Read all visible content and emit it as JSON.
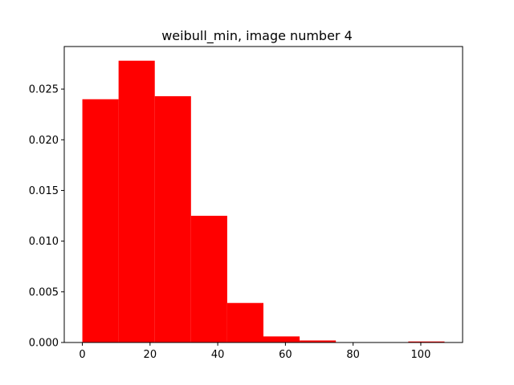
{
  "chart_data": {
    "type": "bar",
    "title": "weibull_min, image number 4",
    "xlabel": "",
    "ylabel": "",
    "bar_color": "#ff0000",
    "xlim": [
      -5.35,
      112.35
    ],
    "ylim": [
      0,
      0.0292
    ],
    "bins": [
      {
        "x0": 0.0,
        "x1": 10.7,
        "value": 0.024
      },
      {
        "x0": 10.7,
        "x1": 21.4,
        "value": 0.0278
      },
      {
        "x0": 21.4,
        "x1": 32.1,
        "value": 0.0243
      },
      {
        "x0": 32.1,
        "x1": 42.8,
        "value": 0.0125
      },
      {
        "x0": 42.8,
        "x1": 53.5,
        "value": 0.0039
      },
      {
        "x0": 53.5,
        "x1": 64.2,
        "value": 0.0006
      },
      {
        "x0": 64.2,
        "x1": 74.9,
        "value": 0.0002
      },
      {
        "x0": 74.9,
        "x1": 85.6,
        "value": 0.0
      },
      {
        "x0": 85.6,
        "x1": 96.3,
        "value": 0.0
      },
      {
        "x0": 96.3,
        "x1": 107.0,
        "value": 0.0001
      }
    ],
    "x_ticks": [
      {
        "value": 0,
        "label": "0"
      },
      {
        "value": 20,
        "label": "20"
      },
      {
        "value": 40,
        "label": "40"
      },
      {
        "value": 60,
        "label": "60"
      },
      {
        "value": 80,
        "label": "80"
      },
      {
        "value": 100,
        "label": "100"
      }
    ],
    "y_ticks": [
      {
        "value": 0.0,
        "label": "0.000"
      },
      {
        "value": 0.005,
        "label": "0.005"
      },
      {
        "value": 0.01,
        "label": "0.010"
      },
      {
        "value": 0.015,
        "label": "0.015"
      },
      {
        "value": 0.02,
        "label": "0.020"
      },
      {
        "value": 0.025,
        "label": "0.025"
      }
    ]
  }
}
